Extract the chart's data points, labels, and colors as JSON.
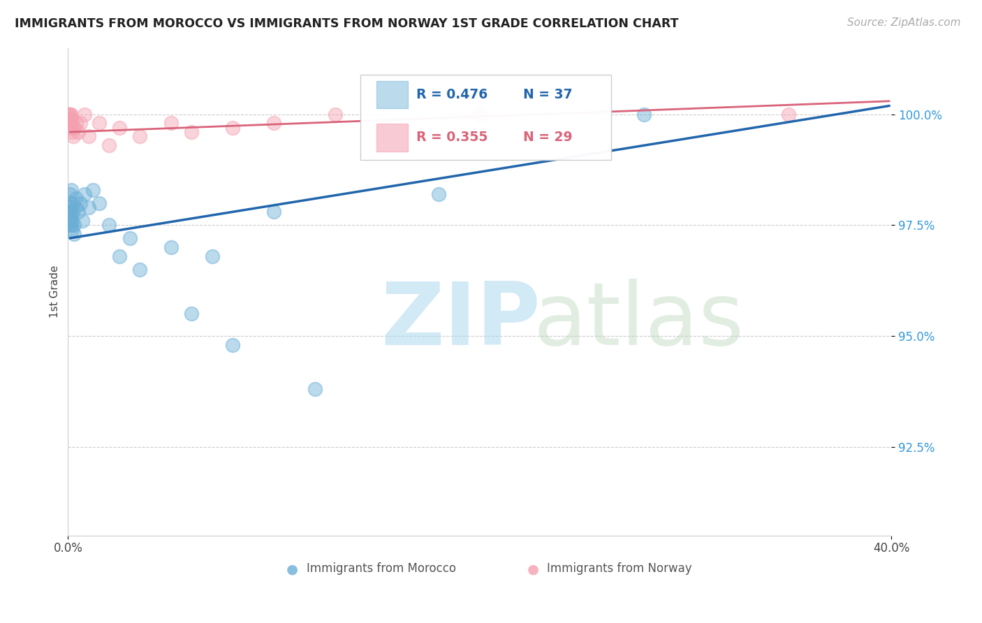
{
  "title": "IMMIGRANTS FROM MOROCCO VS IMMIGRANTS FROM NORWAY 1ST GRADE CORRELATION CHART",
  "source_text": "Source: ZipAtlas.com",
  "ylabel": "1st Grade",
  "y_tick_values": [
    92.5,
    95.0,
    97.5,
    100.0
  ],
  "xlim": [
    0.0,
    40.0
  ],
  "ylim": [
    90.5,
    101.5
  ],
  "legend_r1": "R = 0.476",
  "legend_n1": "N = 37",
  "legend_r2": "R = 0.355",
  "legend_n2": "N = 29",
  "legend_label1": "Immigrants from Morocco",
  "legend_label2": "Immigrants from Norway",
  "color_morocco": "#6aaed6",
  "color_norway": "#f4a0b0",
  "color_line_morocco": "#2166ac",
  "color_line_norway": "#d9647a",
  "morocco_x": [
    0.05,
    0.07,
    0.08,
    0.09,
    0.1,
    0.12,
    0.13,
    0.14,
    0.15,
    0.16,
    0.18,
    0.2,
    0.22,
    0.25,
    0.28,
    0.3,
    0.35,
    0.4,
    0.5,
    0.6,
    0.7,
    0.8,
    1.0,
    1.2,
    1.5,
    2.0,
    2.5,
    3.0,
    3.5,
    5.0,
    6.0,
    7.0,
    8.0,
    10.0,
    12.0,
    18.0,
    28.0
  ],
  "morocco_y": [
    97.8,
    97.5,
    98.2,
    97.6,
    97.9,
    97.7,
    98.0,
    97.8,
    98.3,
    97.5,
    97.4,
    97.6,
    97.8,
    98.0,
    97.3,
    97.5,
    97.9,
    98.1,
    97.8,
    98.0,
    97.6,
    98.2,
    97.9,
    98.3,
    98.0,
    97.5,
    96.8,
    97.2,
    96.5,
    97.0,
    95.5,
    96.8,
    94.8,
    97.8,
    93.8,
    98.2,
    100.0
  ],
  "norway_x": [
    0.05,
    0.06,
    0.07,
    0.08,
    0.09,
    0.1,
    0.12,
    0.14,
    0.16,
    0.18,
    0.2,
    0.25,
    0.3,
    0.4,
    0.5,
    0.6,
    0.8,
    1.0,
    1.5,
    2.0,
    2.5,
    3.5,
    5.0,
    6.0,
    8.0,
    10.0,
    13.0,
    20.0,
    35.0
  ],
  "norway_y": [
    100.0,
    99.8,
    100.0,
    99.9,
    100.0,
    99.8,
    99.7,
    99.9,
    100.0,
    99.8,
    99.6,
    99.5,
    99.7,
    99.8,
    99.6,
    99.8,
    100.0,
    99.5,
    99.8,
    99.3,
    99.7,
    99.5,
    99.8,
    99.6,
    99.7,
    99.8,
    100.0,
    100.0,
    100.0
  ],
  "trendline_morocco_x0": 0.0,
  "trendline_morocco_y0": 97.2,
  "trendline_morocco_x1": 40.0,
  "trendline_morocco_y1": 100.2,
  "trendline_norway_x0": 0.0,
  "trendline_norway_y0": 99.6,
  "trendline_norway_x1": 40.0,
  "trendline_norway_y1": 100.3
}
